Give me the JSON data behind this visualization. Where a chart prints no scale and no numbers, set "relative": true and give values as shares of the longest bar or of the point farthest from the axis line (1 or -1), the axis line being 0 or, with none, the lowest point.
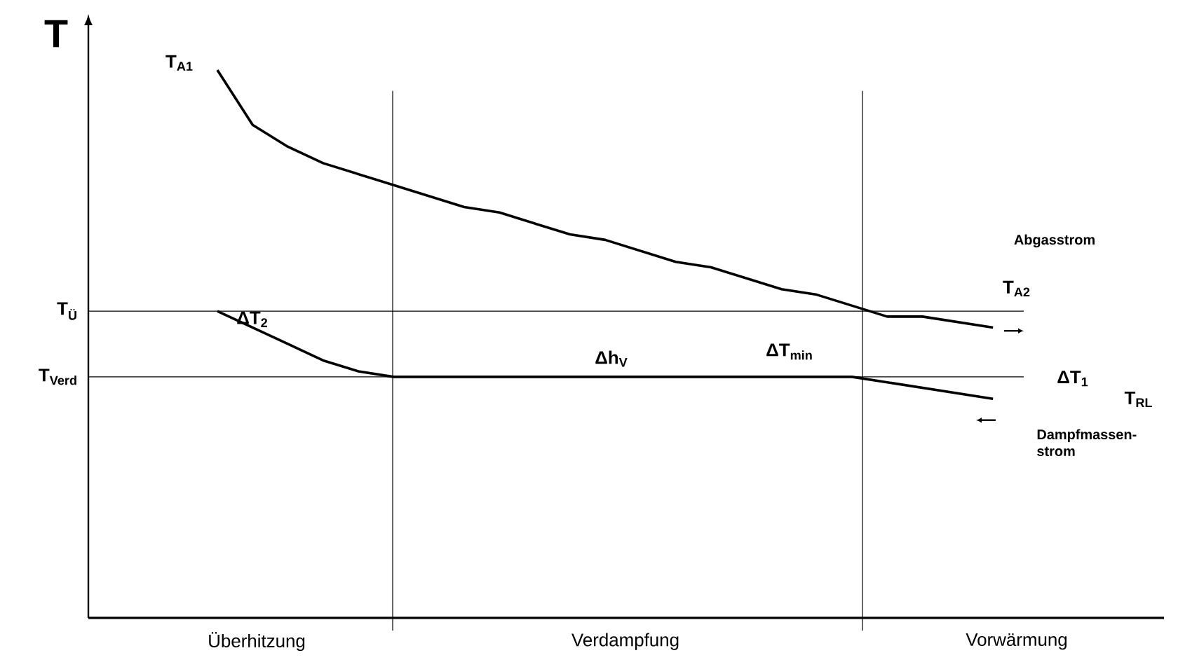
{
  "chart_data": {
    "type": "line",
    "relative": true,
    "ylabel": "T",
    "marker": "none",
    "categories": [
      null,
      null,
      null,
      null,
      null,
      null,
      null,
      null,
      null,
      null,
      null,
      null,
      null,
      null,
      null,
      null,
      null,
      null,
      null,
      null,
      null,
      null,
      null
    ],
    "series": [
      {
        "color": "#000000",
        "values": [
          1.0,
          0.9,
          0.86,
          0.83,
          0.81,
          0.79,
          0.77,
          0.75,
          0.74,
          0.72,
          0.7,
          0.69,
          0.67,
          0.65,
          0.64,
          0.62,
          0.6,
          0.59,
          0.57,
          0.55,
          0.55,
          0.54,
          0.53
        ]
      },
      {
        "color": "#000000",
        "values": [
          0.56,
          0.53,
          0.5,
          0.47,
          0.45,
          0.44,
          0.44,
          0.44,
          0.44,
          0.44,
          0.44,
          0.44,
          0.44,
          0.44,
          0.44,
          0.44,
          0.44,
          0.44,
          0.44,
          0.43,
          0.42,
          0.41,
          0.4
        ]
      }
    ],
    "ref_lines": [
      {
        "axis": "y",
        "value": 0.56,
        "label": "T$_{Ü}$"
      },
      {
        "axis": "y",
        "value": 0.44,
        "label": "T$_{Verd}$"
      }
    ],
    "annotations": [
      "T$_{A1}$",
      "ΔT$_{2}$",
      "Δh$_{V}$",
      "ΔT$_{min}$",
      "Abgasstrom",
      "T$_{A2}$",
      "ΔT$_{1}$",
      "T$_{RL}$",
      "Dampfmassen-strom",
      "Überhitzung",
      "Verdampfung",
      "Vorwärmung"
    ]
  }
}
